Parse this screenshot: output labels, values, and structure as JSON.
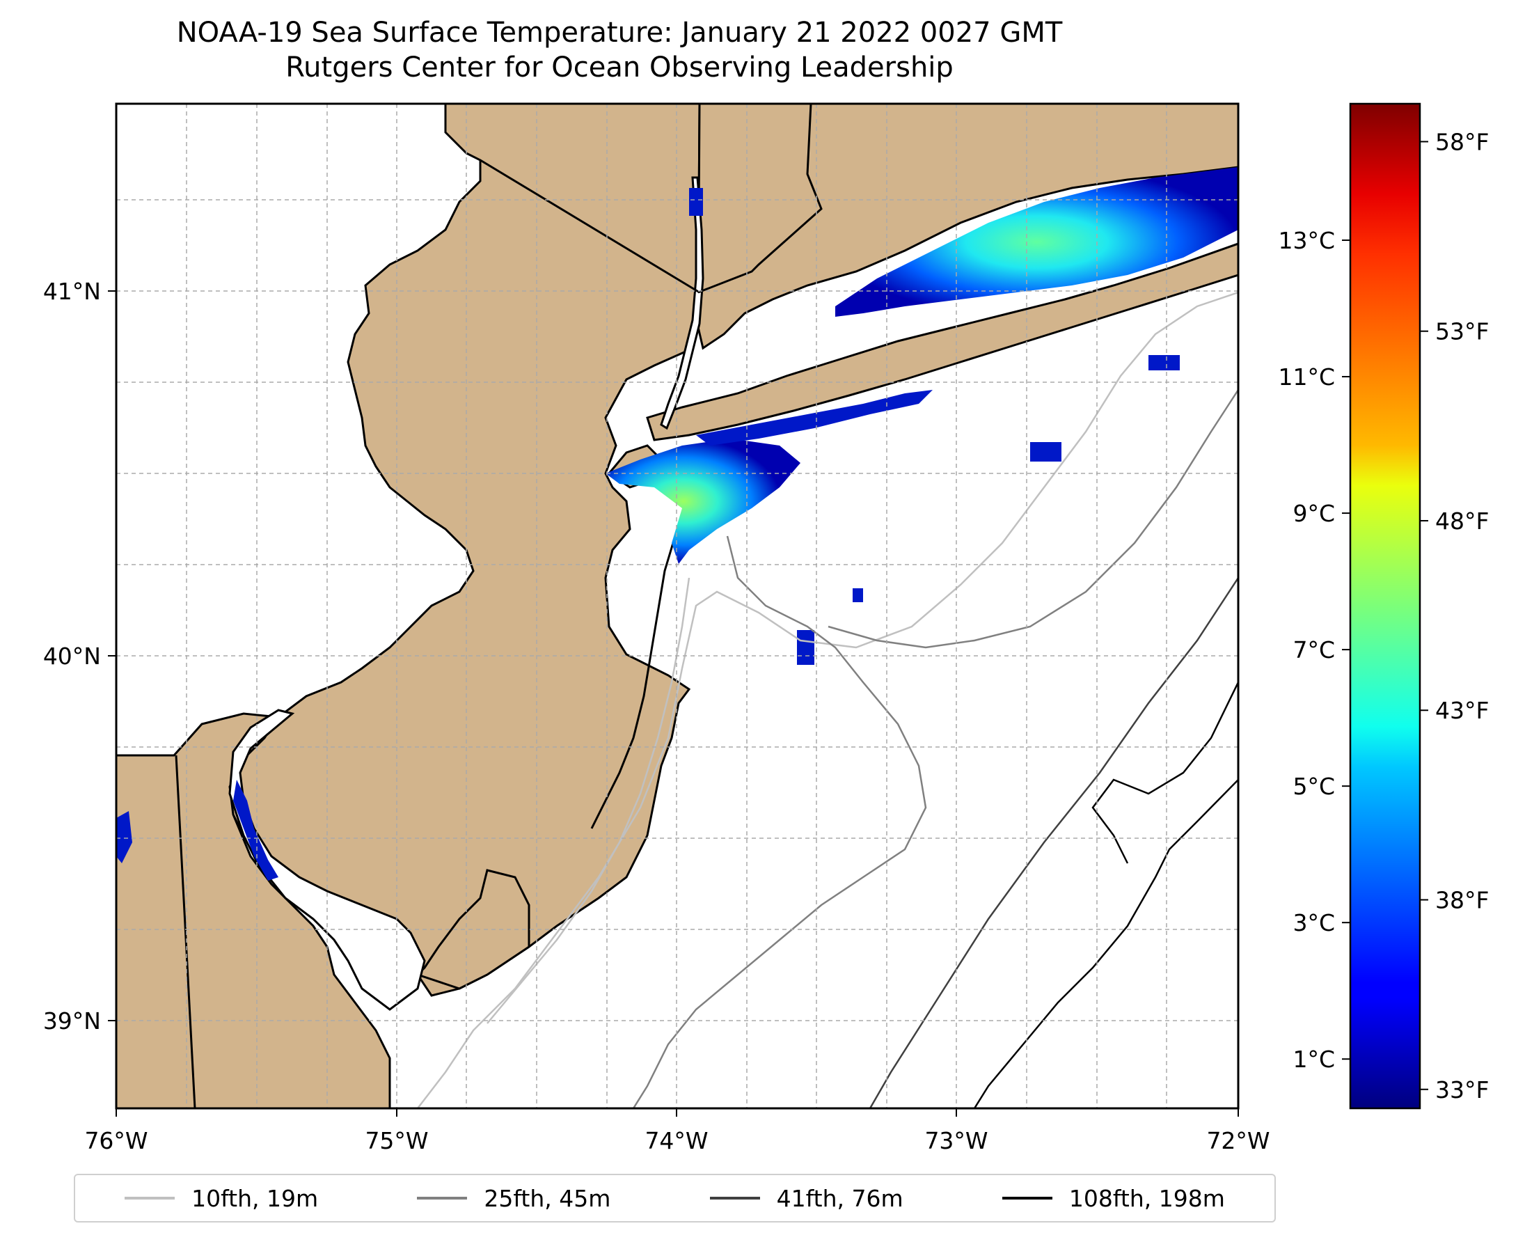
{
  "title": {
    "line1": "NOAA-19 Sea Surface Temperature: January 21 2022 0027 GMT",
    "line2": "Rutgers Center for Ocean Observing Leadership"
  },
  "axes": {
    "x_ticks": [
      {
        "value": -76,
        "label": "76°W"
      },
      {
        "value": -75,
        "label": "75°W"
      },
      {
        "value": -74,
        "label": "74°W"
      },
      {
        "value": -73,
        "label": "73°W"
      },
      {
        "value": -72,
        "label": "72°W"
      }
    ],
    "y_ticks": [
      {
        "value": 41,
        "label": "41°N"
      },
      {
        "value": 40,
        "label": "40°N"
      },
      {
        "value": 39,
        "label": "39°N"
      }
    ],
    "xlim": [
      -76,
      -72
    ],
    "ylim": [
      38.75,
      41.52
    ]
  },
  "colors": {
    "land": "#d2b48c",
    "ocean": "#ffffff",
    "grid": "#aaaaaa"
  },
  "colorbar": {
    "colormap": "jet",
    "celsius_ticks": [
      {
        "value": 1,
        "label": "1°C"
      },
      {
        "value": 3,
        "label": "3°C"
      },
      {
        "value": 5,
        "label": "5°C"
      },
      {
        "value": 7,
        "label": "7°C"
      },
      {
        "value": 9,
        "label": "9°C"
      },
      {
        "value": 11,
        "label": "11°C"
      },
      {
        "value": 13,
        "label": "13°C"
      }
    ],
    "fahrenheit_ticks": [
      {
        "value": 33,
        "label": "33°F"
      },
      {
        "value": 38,
        "label": "38°F"
      },
      {
        "value": 43,
        "label": "43°F"
      },
      {
        "value": 48,
        "label": "48°F"
      },
      {
        "value": 53,
        "label": "53°F"
      },
      {
        "value": 58,
        "label": "58°F"
      }
    ]
  },
  "legend": [
    {
      "label": "10fth, 19m",
      "color": "#c0c0c0"
    },
    {
      "label": "25fth, 45m",
      "color": "#808080"
    },
    {
      "label": "41fth, 76m",
      "color": "#404040"
    },
    {
      "label": "108fth, 198m",
      "color": "#000000"
    }
  ]
}
